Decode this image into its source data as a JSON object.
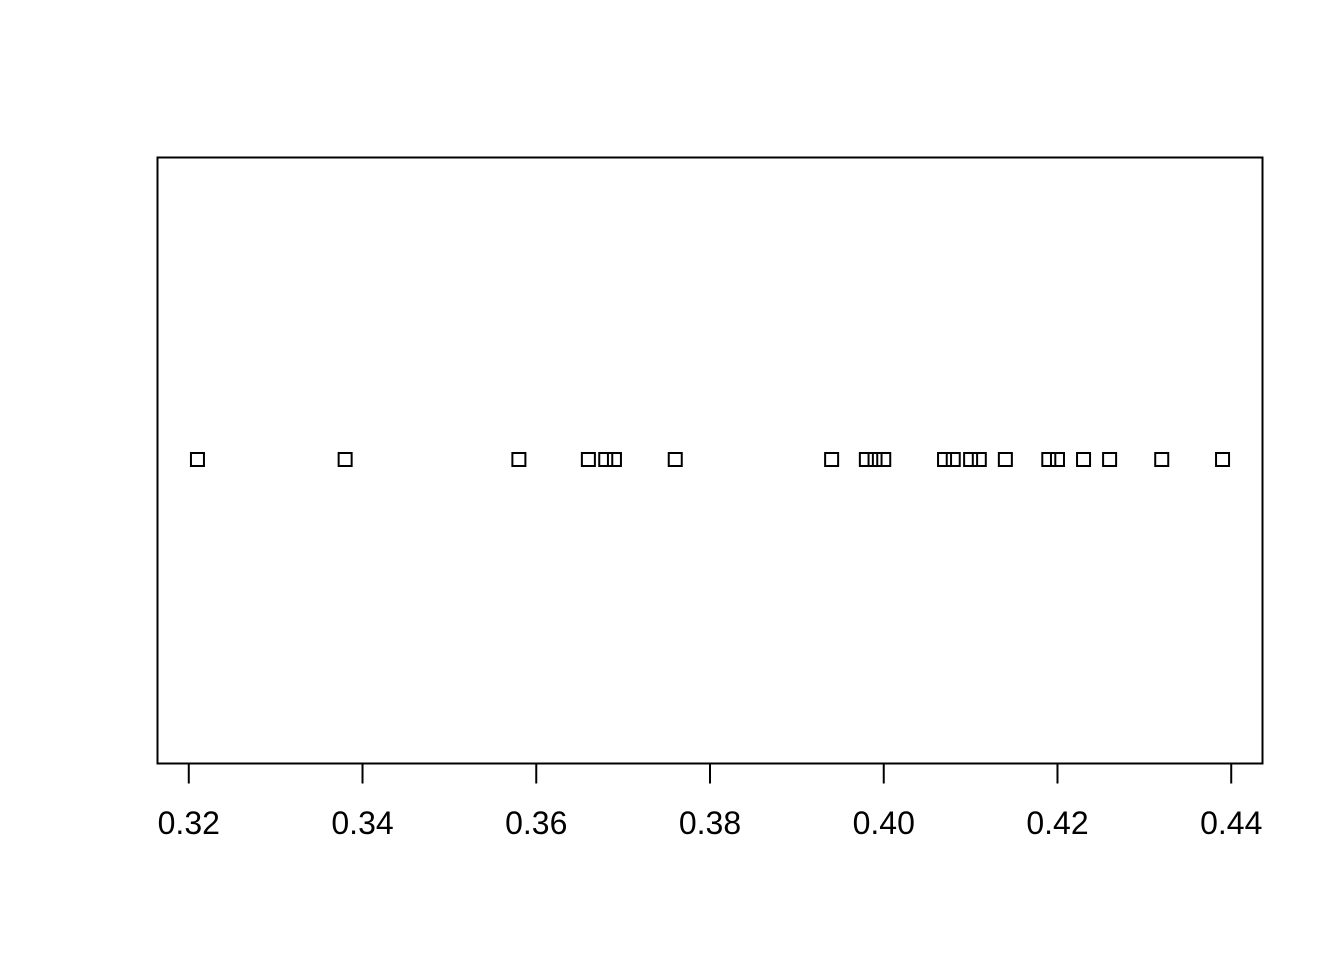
{
  "chart_data": {
    "type": "scatter",
    "plot_style": "stripchart",
    "marker": "open-square",
    "title": "",
    "xlabel": "",
    "ylabel": "",
    "xlim": [
      0.3164,
      0.4436
    ],
    "xticks": [
      0.32,
      0.34,
      0.36,
      0.38,
      0.4,
      0.42,
      0.44
    ],
    "xtick_labels": [
      "0.32",
      "0.34",
      "0.36",
      "0.38",
      "0.40",
      "0.42",
      "0.44"
    ],
    "values": [
      0.321,
      0.338,
      0.358,
      0.366,
      0.368,
      0.369,
      0.376,
      0.394,
      0.398,
      0.399,
      0.4,
      0.407,
      0.408,
      0.41,
      0.411,
      0.414,
      0.419,
      0.42,
      0.423,
      0.426,
      0.432,
      0.439
    ],
    "grid": false,
    "legend": "none",
    "colors": {
      "background": "#ffffff",
      "axis": "#000000",
      "marker_stroke": "#000000"
    }
  }
}
